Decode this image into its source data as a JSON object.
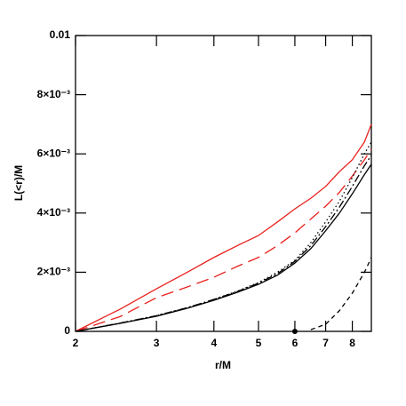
{
  "chart_data": {
    "type": "line",
    "xlabel": "r/M",
    "ylabel": "L(<r)/M",
    "xscale": "log",
    "xlim": [
      2,
      8.8
    ],
    "ylim": [
      0,
      0.01
    ],
    "xticks": [
      2,
      3,
      4,
      5,
      6,
      7,
      8
    ],
    "yticks": [
      0,
      {
        "value": 0.002,
        "label": "2×10⁻³"
      },
      {
        "value": 0.004,
        "label": "4×10⁻³"
      },
      {
        "value": 0.006,
        "label": "6×10⁻³"
      },
      {
        "value": 0.008,
        "label": "8×10⁻³"
      },
      0.01
    ],
    "x": [
      2,
      2.5,
      3,
      3.5,
      4,
      4.5,
      5,
      5.5,
      6,
      6.5,
      7,
      7.5,
      8,
      8.5,
      8.8
    ],
    "series": [
      {
        "color": "#e8201c",
        "dash": "solid",
        "values": [
          0,
          0.00075,
          0.00144,
          0.002,
          0.0025,
          0.0029,
          0.00324,
          0.0037,
          0.00414,
          0.0045,
          0.0049,
          0.0054,
          0.0058,
          0.0064,
          0.007
        ]
      },
      {
        "color": "#e8201c",
        "dash": "longdash",
        "values": [
          0,
          0.0005,
          0.00114,
          0.0015,
          0.00183,
          0.0022,
          0.0025,
          0.0029,
          0.00333,
          0.0038,
          0.00423,
          0.0047,
          0.00525,
          0.0058,
          0.00616
        ]
      },
      {
        "color": "#000000",
        "dash": "dotted",
        "values": [
          0,
          0.00028,
          0.00053,
          0.0008,
          0.00108,
          0.00136,
          0.00165,
          0.002,
          0.0024,
          0.003,
          0.0037,
          0.0044,
          0.0052,
          0.006,
          0.0064
        ]
      },
      {
        "color": "#000000",
        "dash": "dashdot",
        "values": [
          0,
          0.00028,
          0.00053,
          0.0008,
          0.00108,
          0.00135,
          0.00163,
          0.00195,
          0.00237,
          0.0029,
          0.00354,
          0.0042,
          0.0049,
          0.0056,
          0.00595
        ]
      },
      {
        "color": "#000000",
        "dash": "solid",
        "values": [
          0,
          0.00027,
          0.00051,
          0.00078,
          0.00105,
          0.00132,
          0.00159,
          0.0019,
          0.00231,
          0.0028,
          0.0034,
          0.004,
          0.00465,
          0.0053,
          0.00565
        ]
      },
      {
        "color": "#000000",
        "dash": "shortdash",
        "values": [
          null,
          null,
          null,
          null,
          null,
          null,
          null,
          null,
          null,
          6e-05,
          0.00024,
          0.0007,
          0.00129,
          0.002,
          0.00249
        ]
      }
    ],
    "marker": {
      "x": 6,
      "y": 0,
      "color": "#000000"
    }
  }
}
